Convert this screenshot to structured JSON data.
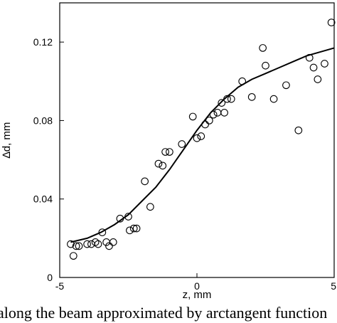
{
  "chart_data": {
    "type": "scatter",
    "title": "",
    "xlabel": "z, mm",
    "ylabel": "∆d, mm",
    "xlim": [
      -5,
      5
    ],
    "ylim": [
      0,
      0.14
    ],
    "xticks": [
      -5,
      0,
      5
    ],
    "xtick_labels": [
      "-5",
      "0",
      "5"
    ],
    "yticks": [
      0,
      0.04,
      0.08,
      0.12
    ],
    "ytick_labels": [
      "0",
      "0.04",
      "0.08",
      "0.12"
    ],
    "grid": false,
    "series": [
      {
        "kind": "scatter",
        "marker": "open-circle",
        "points": [
          [
            -4.6,
            0.017
          ],
          [
            -4.5,
            0.011
          ],
          [
            -4.4,
            0.016
          ],
          [
            -4.3,
            0.016
          ],
          [
            -4.0,
            0.017
          ],
          [
            -3.85,
            0.017
          ],
          [
            -3.7,
            0.018
          ],
          [
            -3.6,
            0.017
          ],
          [
            -3.45,
            0.023
          ],
          [
            -3.3,
            0.018
          ],
          [
            -3.2,
            0.016
          ],
          [
            -3.05,
            0.018
          ],
          [
            -2.8,
            0.03
          ],
          [
            -2.5,
            0.031
          ],
          [
            -2.45,
            0.024
          ],
          [
            -2.3,
            0.025
          ],
          [
            -2.2,
            0.025
          ],
          [
            -1.9,
            0.049
          ],
          [
            -1.7,
            0.036
          ],
          [
            -1.4,
            0.058
          ],
          [
            -1.25,
            0.057
          ],
          [
            -1.15,
            0.064
          ],
          [
            -1.0,
            0.064
          ],
          [
            -0.55,
            0.068
          ],
          [
            -0.15,
            0.082
          ],
          [
            0.0,
            0.071
          ],
          [
            0.15,
            0.072
          ],
          [
            0.3,
            0.078
          ],
          [
            0.45,
            0.08
          ],
          [
            0.6,
            0.083
          ],
          [
            0.75,
            0.084
          ],
          [
            0.9,
            0.089
          ],
          [
            1.0,
            0.084
          ],
          [
            1.1,
            0.091
          ],
          [
            1.25,
            0.091
          ],
          [
            1.65,
            0.1
          ],
          [
            2.0,
            0.092
          ],
          [
            2.4,
            0.117
          ],
          [
            2.5,
            0.108
          ],
          [
            2.8,
            0.091
          ],
          [
            3.25,
            0.098
          ],
          [
            3.7,
            0.075
          ],
          [
            4.1,
            0.112
          ],
          [
            4.25,
            0.107
          ],
          [
            4.4,
            0.101
          ],
          [
            4.65,
            0.109
          ],
          [
            4.9,
            0.13
          ]
        ]
      },
      {
        "kind": "line",
        "marker": "none",
        "points": [
          [
            -4.6,
            0.018
          ],
          [
            -4.0,
            0.02
          ],
          [
            -3.5,
            0.023
          ],
          [
            -3.0,
            0.027
          ],
          [
            -2.5,
            0.032
          ],
          [
            -2.0,
            0.039
          ],
          [
            -1.5,
            0.046
          ],
          [
            -1.0,
            0.055
          ],
          [
            -0.5,
            0.065
          ],
          [
            0.0,
            0.075
          ],
          [
            0.5,
            0.084
          ],
          [
            1.0,
            0.091
          ],
          [
            1.5,
            0.097
          ],
          [
            2.0,
            0.101
          ],
          [
            2.5,
            0.104
          ],
          [
            3.0,
            0.107
          ],
          [
            3.5,
            0.11
          ],
          [
            4.0,
            0.113
          ],
          [
            4.5,
            0.115
          ],
          [
            5.0,
            0.117
          ]
        ]
      }
    ]
  },
  "caption": "along the beam approximated by arctangent function"
}
